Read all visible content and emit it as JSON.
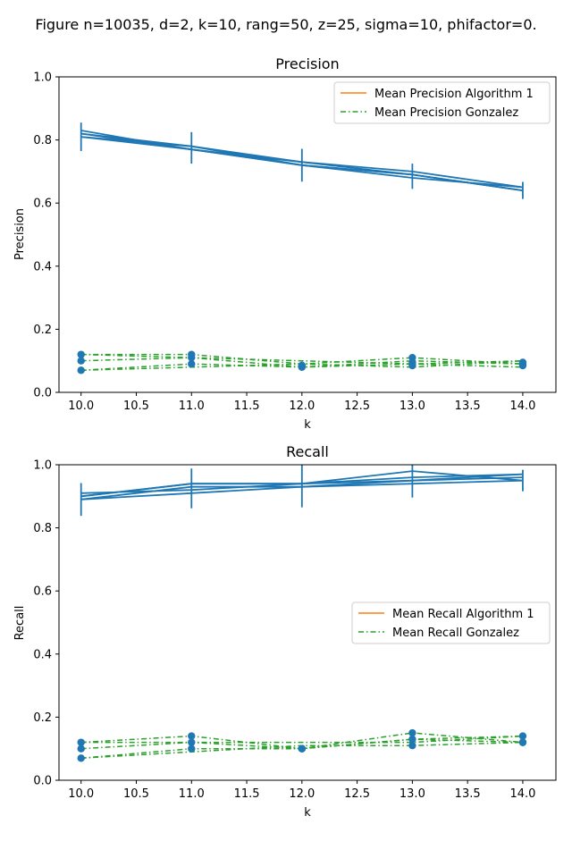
{
  "figure_title": "Figure   n=10035, d=2, k=10, rang=50, z=25, sigma=10, phifactor=0.",
  "colors": {
    "blue": "#1f77b4",
    "orange": "#ff7f0e",
    "green": "#2ca02c"
  },
  "chart_data": [
    {
      "type": "line",
      "title": "Precision",
      "xlabel": "k",
      "ylabel": "Precision",
      "xlim": [
        9.8,
        14.3
      ],
      "ylim": [
        0,
        1.0
      ],
      "x": [
        10,
        11,
        12,
        13,
        14
      ],
      "xticks": [
        "10.0",
        "10.5",
        "11.0",
        "11.5",
        "12.0",
        "12.5",
        "13.0",
        "13.5",
        "14.0"
      ],
      "yticks": [
        "0.0",
        "0.2",
        "0.4",
        "0.6",
        "0.8",
        "1.0"
      ],
      "legend_position": "top-right",
      "legend": [
        "Mean Precision Algorithm 1",
        "Mean Precision Gonzalez"
      ],
      "algorithm1_runs": [
        [
          0.81,
          0.77,
          0.72,
          0.69,
          0.64
        ],
        [
          0.82,
          0.78,
          0.73,
          0.7,
          0.65
        ],
        [
          0.83,
          0.77,
          0.72,
          0.69,
          0.64
        ],
        [
          0.81,
          0.78,
          0.72,
          0.68,
          0.65
        ],
        [
          0.82,
          0.77,
          0.73,
          0.69,
          0.64
        ]
      ],
      "algorithm1_errorbars": {
        "mean": [
          0.81,
          0.775,
          0.72,
          0.685,
          0.64
        ],
        "err": [
          0.045,
          0.05,
          0.052,
          0.04,
          0.027
        ]
      },
      "gonzalez_runs": [
        [
          0.12,
          0.12,
          0.09,
          0.11,
          0.09
        ],
        [
          0.1,
          0.11,
          0.08,
          0.09,
          0.1
        ],
        [
          0.07,
          0.09,
          0.08,
          0.1,
          0.09
        ],
        [
          0.12,
          0.11,
          0.1,
          0.09,
          0.08
        ],
        [
          0.07,
          0.08,
          0.09,
          0.08,
          0.1
        ]
      ],
      "gonzalez_markers": [
        [
          0.12,
          0.12,
          0.085,
          0.11,
          0.095
        ],
        [
          0.1,
          0.11,
          0.08,
          0.095,
          0.085
        ],
        [
          0.07,
          0.09,
          0.085,
          0.085,
          0.09
        ]
      ]
    },
    {
      "type": "line",
      "title": "Recall",
      "xlabel": "k",
      "ylabel": "Recall",
      "xlim": [
        9.8,
        14.3
      ],
      "ylim": [
        0,
        1.0
      ],
      "x": [
        10,
        11,
        12,
        13,
        14
      ],
      "xticks": [
        "10.0",
        "10.5",
        "11.0",
        "11.5",
        "12.0",
        "12.5",
        "13.0",
        "13.5",
        "14.0"
      ],
      "yticks": [
        "0.0",
        "0.2",
        "0.4",
        "0.6",
        "0.8",
        "1.0"
      ],
      "legend_position": "center-right",
      "legend": [
        "Mean Recall Algorithm 1",
        "Mean Recall Gonzalez"
      ],
      "algorithm1_runs": [
        [
          0.89,
          0.91,
          0.93,
          0.94,
          0.95
        ],
        [
          0.9,
          0.94,
          0.94,
          0.98,
          0.95
        ],
        [
          0.91,
          0.92,
          0.94,
          0.96,
          0.97
        ],
        [
          0.89,
          0.93,
          0.93,
          0.95,
          0.96
        ],
        [
          0.9,
          0.94,
          0.94,
          0.95,
          0.97
        ]
      ],
      "algorithm1_errorbars": {
        "mean": [
          0.89,
          0.925,
          0.935,
          0.96,
          0.95
        ],
        "err": [
          0.052,
          0.063,
          0.07,
          0.064,
          0.034
        ]
      },
      "gonzalez_runs": [
        [
          0.12,
          0.14,
          0.1,
          0.15,
          0.12
        ],
        [
          0.07,
          0.1,
          0.1,
          0.13,
          0.12
        ],
        [
          0.1,
          0.12,
          0.12,
          0.12,
          0.14
        ],
        [
          0.07,
          0.09,
          0.11,
          0.11,
          0.12
        ],
        [
          0.12,
          0.12,
          0.1,
          0.13,
          0.14
        ]
      ],
      "gonzalez_markers": [
        [
          0.12,
          0.14,
          0.1,
          0.15,
          0.14
        ],
        [
          0.1,
          0.12,
          0.1,
          0.13,
          0.12
        ],
        [
          0.07,
          0.1,
          0.1,
          0.11,
          0.12
        ]
      ]
    }
  ]
}
